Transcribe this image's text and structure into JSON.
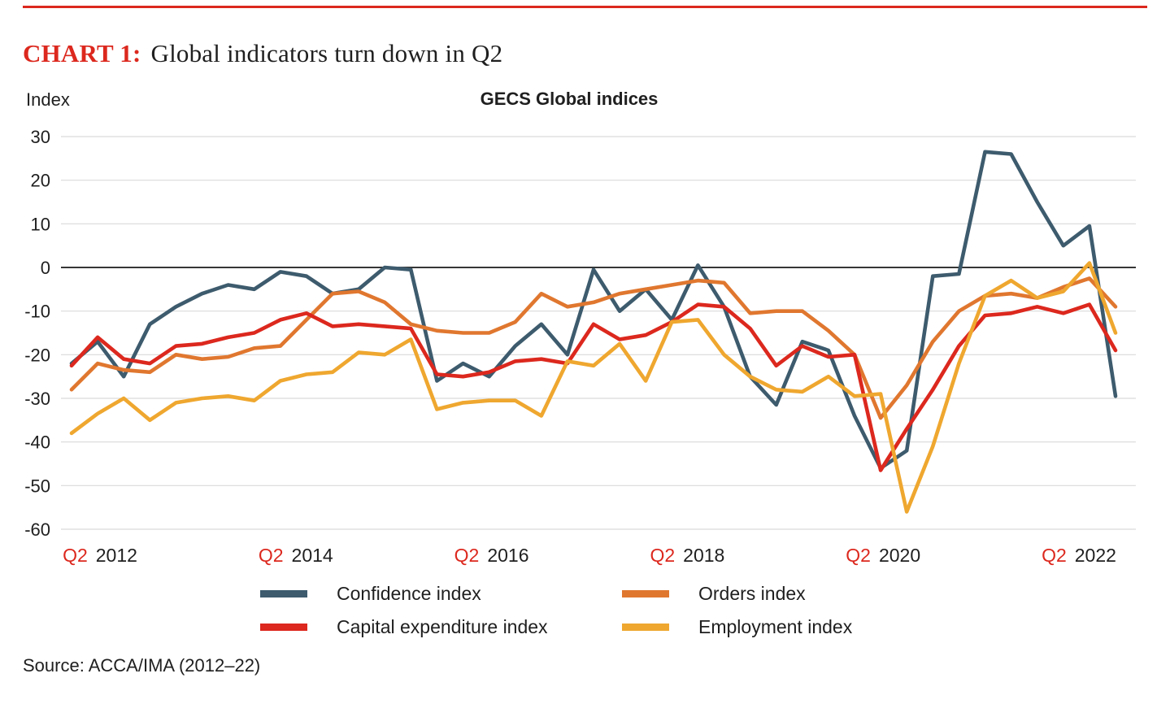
{
  "header": {
    "title_prefix": "CHART 1:",
    "title": "Global indicators turn down in Q2"
  },
  "chart_data": {
    "type": "line",
    "title": "GECS Global indices",
    "ylabel": "Index",
    "ylim": [
      -60,
      30
    ],
    "y_ticks": [
      30,
      20,
      10,
      0,
      -10,
      -20,
      -30,
      -40,
      -50,
      -60
    ],
    "grid": "horizontal",
    "legend_position": "bottom",
    "x_tick_labels": [
      {
        "q": "Q2",
        "year": "2012"
      },
      {
        "q": "Q2",
        "year": "2014"
      },
      {
        "q": "Q2",
        "year": "2016"
      },
      {
        "q": "Q2",
        "year": "2018"
      },
      {
        "q": "Q2",
        "year": "2020"
      },
      {
        "q": "Q2",
        "year": "2022"
      }
    ],
    "categories": [
      "Q2 2012",
      "Q3 2012",
      "Q4 2012",
      "Q1 2013",
      "Q2 2013",
      "Q3 2013",
      "Q4 2013",
      "Q1 2014",
      "Q2 2014",
      "Q3 2014",
      "Q4 2014",
      "Q1 2015",
      "Q2 2015",
      "Q3 2015",
      "Q4 2015",
      "Q1 2016",
      "Q2 2016",
      "Q3 2016",
      "Q4 2016",
      "Q1 2017",
      "Q2 2017",
      "Q3 2017",
      "Q4 2017",
      "Q1 2018",
      "Q2 2018",
      "Q3 2018",
      "Q4 2018",
      "Q1 2019",
      "Q2 2019",
      "Q3 2019",
      "Q4 2019",
      "Q1 2020",
      "Q2 2020",
      "Q3 2020",
      "Q4 2020",
      "Q1 2021",
      "Q2 2021",
      "Q3 2021",
      "Q4 2021",
      "Q1 2022",
      "Q2 2022"
    ],
    "series": [
      {
        "name": "Confidence index",
        "color": "#3d5b6d",
        "values": [
          -22,
          -17,
          -25,
          -13,
          -9,
          -6,
          -4,
          -5,
          -1,
          -2,
          -6,
          -5,
          0,
          -0.5,
          -26,
          -22,
          -25,
          -18,
          -13,
          -20,
          -0.5,
          -10,
          -5,
          -12,
          0.5,
          -9,
          -25,
          -31.5,
          -17,
          -19,
          -34,
          -46,
          -42,
          -2,
          -1.5,
          26.5,
          26,
          15,
          5,
          9.5,
          -29.5
        ]
      },
      {
        "name": "Orders index",
        "color": "#e0772f",
        "values": [
          -28,
          -22,
          -23.5,
          -24,
          -20,
          -21,
          -20.5,
          -18.5,
          -18,
          -12,
          -6,
          -5.5,
          -8,
          -13,
          -14.5,
          -15,
          -15,
          -12.5,
          -6,
          -9,
          -8,
          -6,
          -5,
          -4,
          -3,
          -3.5,
          -10.5,
          -10,
          -10,
          -14.5,
          -20,
          -34.5,
          -27,
          -17,
          -10,
          -6.5,
          -6,
          -7,
          -4.5,
          -2.5,
          -9
        ]
      },
      {
        "name": "Capital expenditure index",
        "color": "#dc281e",
        "values": [
          -22.5,
          -16,
          -21,
          -22,
          -18,
          -17.5,
          -16,
          -15,
          -12,
          -10.5,
          -13.5,
          -13,
          -13.5,
          -14,
          -24.5,
          -25,
          -24,
          -21.5,
          -21,
          -22,
          -13,
          -16.5,
          -15.5,
          -12.5,
          -8.5,
          -9,
          -14,
          -22.5,
          -18,
          -20.5,
          -20,
          -46.5,
          -37,
          -28,
          -18,
          -11,
          -10.5,
          -9,
          -10.5,
          -8.5,
          -19
        ]
      },
      {
        "name": "Employment index",
        "color": "#efa72f",
        "values": [
          -38,
          -33.5,
          -30,
          -35,
          -31,
          -30,
          -29.5,
          -30.5,
          -26,
          -24.5,
          -24,
          -19.5,
          -20,
          -16.5,
          -32.5,
          -31,
          -30.5,
          -30.5,
          -34,
          -21.5,
          -22.5,
          -17.5,
          -26,
          -12.5,
          -12,
          -20,
          -25,
          -28,
          -28.5,
          -25,
          -29.5,
          -29,
          -56,
          -41,
          -22,
          -6.5,
          -3,
          -7,
          -5.5,
          1,
          -15
        ]
      }
    ]
  },
  "source": "Source: ACCA/IMA (2012–22)",
  "colors": {
    "accent_red": "#dc281e",
    "text": "#1f1f1f",
    "grid": "#d9d9d9",
    "zero_line": "#1a1a1a"
  }
}
